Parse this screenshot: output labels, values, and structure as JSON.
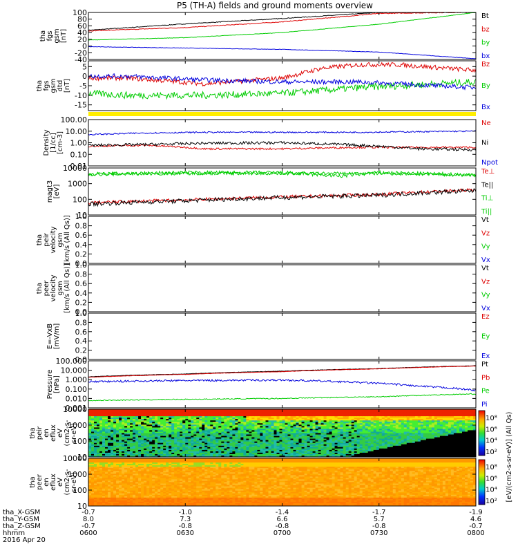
{
  "title": "P5 (TH-A) fields and ground moments overview",
  "chart_data": [
    {
      "type": "line",
      "id": "p1",
      "ylabel": [
        "tha",
        "fgs",
        "gsm",
        "[nT]"
      ],
      "ylim": [
        -40,
        100
      ],
      "ticks": [
        100,
        80,
        60,
        40,
        20,
        0,
        -20,
        -40
      ],
      "series": [
        {
          "name": "Bt",
          "color": "#000000",
          "x": [
            0,
            0.5,
            1,
            1.5,
            1.9,
            2.0
          ],
          "y": [
            47,
            66,
            82,
            100,
            100,
            100
          ],
          "noise": 1
        },
        {
          "name": "bz",
          "color": "#dd0000",
          "x": [
            0,
            0.5,
            1,
            1.5,
            1.9,
            2.0
          ],
          "y": [
            45,
            55,
            72,
            97,
            100,
            100
          ],
          "noise": 1
        },
        {
          "name": "by",
          "color": "#00cc00",
          "x": [
            0,
            0.5,
            1,
            1.5,
            2.0
          ],
          "y": [
            18,
            25,
            40,
            65,
            100
          ],
          "noise": 0.6
        },
        {
          "name": "bx",
          "color": "#0000dd",
          "x": [
            0,
            0.5,
            1,
            1.5,
            2.0
          ],
          "y": [
            -2,
            -6,
            -10,
            -18,
            -38
          ],
          "noise": 0.6
        }
      ]
    },
    {
      "type": "line",
      "id": "p2",
      "ylabel": [
        "tha",
        "fgs",
        "gsm",
        "dtd",
        "[nT]"
      ],
      "ylim": [
        -18,
        8
      ],
      "ticks": [
        5,
        0,
        -5,
        -10,
        -15
      ],
      "series": [
        {
          "name": "Bz",
          "color": "#dd0000",
          "x": [
            0,
            0.2,
            0.6,
            1.0,
            1.2,
            1.4,
            1.6,
            2.0
          ],
          "y": [
            -1,
            -1,
            -4,
            -1,
            4,
            6,
            6,
            3
          ],
          "noise": 1.2
        },
        {
          "name": "By",
          "color": "#00cc00",
          "x": [
            0,
            0.2,
            0.6,
            1.0,
            1.4,
            2.0
          ],
          "y": [
            -9,
            -10,
            -10,
            -9,
            -6,
            -3
          ],
          "noise": 1.8
        },
        {
          "name": "Bx",
          "color": "#0000dd",
          "x": [
            0,
            0.2,
            0.6,
            1.0,
            1.4,
            2.0
          ],
          "y": [
            0,
            0,
            -2,
            -3,
            -3,
            -6
          ],
          "noise": 1.2
        }
      ]
    },
    {
      "type": "line",
      "id": "p3",
      "scale": "log",
      "ylabel": [
        "Density",
        "[1/cc]",
        "[cm-3]"
      ],
      "ylim": [
        0.01,
        100
      ],
      "tick_labels": [
        "100.00",
        "10.00",
        "1.00",
        "0.10",
        "0.01"
      ],
      "series": [
        {
          "name": "Ne",
          "color": "#dd0000",
          "x": [
            0,
            0.3,
            0.6,
            1.0,
            1.4,
            2.0
          ],
          "y": [
            0.5,
            0.6,
            0.3,
            0.3,
            0.4,
            0.4
          ],
          "noise": 0.08
        },
        {
          "name": "Ni",
          "color": "#000000",
          "x": [
            0,
            0.3,
            0.6,
            1.0,
            1.4,
            1.7,
            2.0
          ],
          "y": [
            0.6,
            0.7,
            0.9,
            1.0,
            0.6,
            0.3,
            0.25
          ],
          "noise": 0.12
        },
        {
          "name": "Npot",
          "color": "#0000dd",
          "x": [
            0,
            0.3,
            0.6,
            1.0,
            1.4,
            2.0
          ],
          "y": [
            5,
            7,
            8,
            8,
            8,
            10
          ],
          "noise": 0.06
        }
      ]
    },
    {
      "type": "line",
      "id": "p4",
      "scale": "log",
      "ylabel": [
        "magt3",
        "[eV]"
      ],
      "ylim": [
        10,
        10000
      ],
      "tick_labels": [
        "10000",
        "1000",
        "100",
        "10"
      ],
      "series": [
        {
          "name": "Te⊥",
          "color": "#dd0000",
          "x": [
            0,
            0.5,
            1.0,
            1.5,
            2.0
          ],
          "y": [
            60,
            90,
            140,
            200,
            400
          ],
          "noise": 0.1
        },
        {
          "name": "Te||",
          "color": "#000000",
          "x": [
            0,
            0.5,
            1.0,
            1.5,
            2.0
          ],
          "y": [
            50,
            80,
            130,
            180,
            350
          ],
          "noise": 0.14
        },
        {
          "name": "Ti⊥",
          "color": "#00cc00",
          "x": [
            0,
            0.5,
            1.0,
            1.3,
            1.5,
            2.0
          ],
          "y": [
            4000,
            5000,
            5000,
            3000,
            5000,
            3500
          ],
          "noise": 0.12
        },
        {
          "name": "Ti||",
          "color": "#00cc00",
          "x": [
            0,
            0.5,
            1.0,
            1.5,
            2.0
          ],
          "y": [
            4000,
            4500,
            4500,
            4500,
            3500
          ],
          "noise": 0.1
        }
      ]
    },
    {
      "type": "line",
      "id": "p5",
      "ylabel": [
        "tha",
        "peir",
        "velocity",
        "gsm",
        "[km/s (All Qs)]"
      ],
      "ylim": [
        0,
        1
      ],
      "tick_labels": [
        "1.0",
        "0.8",
        "0.6",
        "0.4",
        "0.2",
        "0.0"
      ],
      "series": [
        {
          "name": "Vt",
          "color": "#000000"
        },
        {
          "name": "Vz",
          "color": "#dd0000"
        },
        {
          "name": "Vy",
          "color": "#00cc00"
        },
        {
          "name": "Vx",
          "color": "#0000dd"
        }
      ]
    },
    {
      "type": "line",
      "id": "p6",
      "ylabel": [
        "tha",
        "peer",
        "velocity",
        "gsm",
        "[km/s (All Qs)]"
      ],
      "ylim": [
        0,
        1
      ],
      "tick_labels": [
        "1.0",
        "0.8",
        "0.6",
        "0.4",
        "0.2",
        "0.0"
      ],
      "series": [
        {
          "name": "Vt",
          "color": "#000000"
        },
        {
          "name": "Vz",
          "color": "#dd0000"
        },
        {
          "name": "Vy",
          "color": "#00cc00"
        },
        {
          "name": "Vx",
          "color": "#0000dd"
        }
      ]
    },
    {
      "type": "line",
      "id": "p7",
      "ylabel": [
        "E=-VxB",
        "[mV/m]"
      ],
      "ylim": [
        0,
        1
      ],
      "tick_labels": [
        "1.0",
        "0.8",
        "0.6",
        "0.4",
        "0.2",
        "0.0"
      ],
      "series": [
        {
          "name": "Ez",
          "color": "#dd0000"
        },
        {
          "name": "Ey",
          "color": "#00cc00"
        },
        {
          "name": "Ex",
          "color": "#0000dd"
        }
      ]
    },
    {
      "type": "line",
      "id": "p8",
      "scale": "log",
      "ylabel": [
        "Pressure",
        "[nPa]"
      ],
      "ylim": [
        0.001,
        100
      ],
      "tick_labels": [
        "100.000",
        "10.000",
        "1.000",
        "0.100",
        "0.010",
        "0.001"
      ],
      "series": [
        {
          "name": "Pt",
          "color": "#000000",
          "x": [
            0,
            0.5,
            1.0,
            1.5,
            2.0
          ],
          "y": [
            2,
            4,
            8,
            15,
            30
          ],
          "noise": 0.02
        },
        {
          "name": "Pb",
          "color": "#dd0000",
          "x": [
            0,
            0.5,
            1.0,
            1.5,
            2.0
          ],
          "y": [
            1.8,
            3.6,
            7,
            14,
            28
          ],
          "noise": 0.02
        },
        {
          "name": "Pe",
          "color": "#00cc00",
          "x": [
            0,
            0.5,
            1.0,
            1.5,
            2.0
          ],
          "y": [
            0.006,
            0.008,
            0.01,
            0.015,
            0.03
          ],
          "noise": 0.05
        },
        {
          "name": "Pi",
          "color": "#0000dd",
          "x": [
            0,
            0.5,
            1.0,
            1.4,
            1.7,
            2.0
          ],
          "y": [
            0.6,
            0.8,
            0.9,
            0.5,
            0.2,
            0.07
          ],
          "noise": 0.1
        }
      ]
    },
    {
      "type": "heatmap",
      "id": "p9",
      "scale": "log",
      "ylabel": [
        "tha",
        "peir",
        "en",
        "eflux",
        "eV",
        "(cm2-s-",
        "sr-eV)"
      ],
      "ylim": [
        5,
        25000
      ],
      "tick_labels": [
        "10000",
        "1000",
        "100",
        "10"
      ]
    },
    {
      "type": "heatmap",
      "id": "p10",
      "scale": "log",
      "ylabel": [
        "tha",
        "peer",
        "en",
        "eflux",
        "eV",
        "(cm2-s-",
        "sr-eV)"
      ],
      "ylim": [
        5,
        25000
      ],
      "tick_labels": [
        "10000",
        "1000",
        "100",
        "10"
      ]
    }
  ],
  "colorbars": [
    {
      "label": "[eV/(cm2-s-sr-eV)] (All Qs)",
      "ticks": [
        "10⁸",
        "10⁶",
        "10⁴",
        "10²"
      ]
    },
    {
      "label": "[eV/(cm2-s-sr-eV)] (All Qs)",
      "ticks": [
        "10⁸",
        "10⁶",
        "10⁴",
        "10²"
      ]
    }
  ],
  "xaxis": {
    "row_labels": [
      "tha_X-GSM",
      "tha_Y-GSM",
      "tha_Z-GSM",
      "hhmm",
      "2016 Apr 20"
    ],
    "columns": [
      [
        "-0.7",
        "8.0",
        "-0.7",
        "0600"
      ],
      [
        "-1.0",
        "7.3",
        "-0.8",
        "0630"
      ],
      [
        "-1.4",
        "6.6",
        "-0.8",
        "0700"
      ],
      [
        "-1.7",
        "5.7",
        "-0.8",
        "0730"
      ],
      [
        "-1.9",
        "4.6",
        "-0.7",
        "0800"
      ]
    ]
  }
}
